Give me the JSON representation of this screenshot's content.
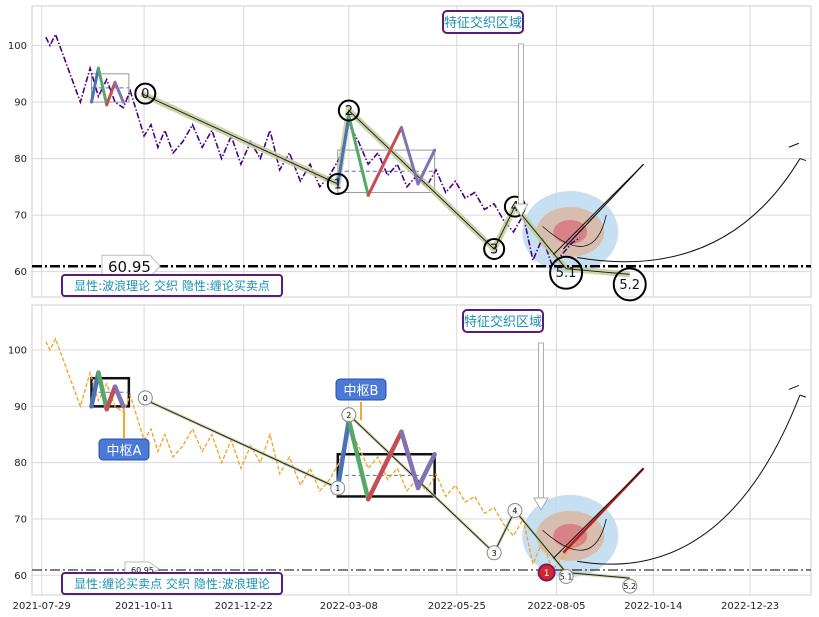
{
  "chart_data": [
    {
      "type": "line",
      "panel": "top",
      "title": "",
      "xlabel": "",
      "ylabel": "",
      "ylim": [
        55.5,
        107
      ],
      "yticks": [
        "60",
        "70",
        "80",
        "90",
        "100"
      ],
      "grid": true,
      "series": [
        {
          "line_style": "dash-dot",
          "color": "#4b0082",
          "x": [
            "2021-08-01",
            "2021-08-04",
            "2021-08-08",
            "2021-08-14",
            "2021-08-20",
            "2021-08-26",
            "2021-09-02",
            "2021-09-08",
            "2021-09-14",
            "2021-09-20",
            "2021-09-26",
            "2021-10-01",
            "2021-10-06",
            "2021-10-11",
            "2021-10-16",
            "2021-10-21",
            "2021-10-26",
            "2021-11-01",
            "2021-11-08",
            "2021-11-15",
            "2021-11-22",
            "2021-11-29",
            "2021-12-06",
            "2021-12-13",
            "2021-12-20",
            "2021-12-27",
            "2022-01-03",
            "2022-01-10",
            "2022-01-17",
            "2022-01-24",
            "2022-02-01",
            "2022-02-08",
            "2022-02-15",
            "2022-02-22",
            "2022-03-01",
            "2022-03-08",
            "2022-03-15",
            "2022-03-22",
            "2022-03-29",
            "2022-04-05",
            "2022-04-12",
            "2022-04-19",
            "2022-04-26",
            "2022-05-03",
            "2022-05-10",
            "2022-05-17",
            "2022-05-24",
            "2022-05-31",
            "2022-06-07",
            "2022-06-14",
            "2022-06-21",
            "2022-06-28",
            "2022-07-05",
            "2022-07-12",
            "2022-07-19",
            "2022-07-26",
            "2022-08-02",
            "2022-08-09",
            "2022-08-16",
            "2022-08-22"
          ],
          "y": [
            101.5,
            100,
            102,
            98,
            94,
            90,
            96,
            91,
            94,
            90,
            89,
            92,
            88,
            84,
            86,
            82,
            85,
            81,
            83,
            86,
            82,
            85,
            80,
            84,
            79,
            83,
            80,
            85,
            78,
            81,
            76,
            79,
            75,
            77,
            80,
            86,
            83,
            79,
            81,
            77,
            79,
            75,
            77,
            75,
            78,
            74,
            76,
            73,
            74,
            71,
            72,
            69,
            67,
            70,
            62,
            66,
            61,
            63,
            65,
            66
          ]
        }
      ],
      "bi_strokes": [
        {
          "x": [
            "2021-09-03",
            "2021-09-08"
          ],
          "y": [
            90,
            96
          ],
          "color": "#4a72b4"
        },
        {
          "x": [
            "2021-09-08",
            "2021-09-14"
          ],
          "y": [
            96,
            89.5
          ],
          "color": "#55a868"
        },
        {
          "x": [
            "2021-09-14",
            "2021-09-20"
          ],
          "y": [
            89.5,
            93.5
          ],
          "color": "#c44e52"
        },
        {
          "x": [
            "2021-09-20",
            "2021-09-26"
          ],
          "y": [
            93.5,
            90
          ],
          "color": "#8172b3"
        },
        {
          "x": [
            "2022-02-28",
            "2022-03-08"
          ],
          "y": [
            75.5,
            87.5
          ],
          "color": "#4a72b4"
        },
        {
          "x": [
            "2022-03-08",
            "2022-03-22"
          ],
          "y": [
            87.5,
            73.5
          ],
          "color": "#55a868"
        },
        {
          "x": [
            "2022-03-22",
            "2022-04-15"
          ],
          "y": [
            73.5,
            85.5
          ],
          "color": "#c44e52"
        },
        {
          "x": [
            "2022-04-15",
            "2022-04-27"
          ],
          "y": [
            85.5,
            75.5
          ],
          "color": "#8172b3"
        },
        {
          "x": [
            "2022-04-27",
            "2022-05-09"
          ],
          "y": [
            75.5,
            81.5
          ],
          "color": "#8172b3"
        }
      ],
      "wave_points": [
        {
          "label": "0",
          "x": "2021-10-09",
          "y": 91.5
        },
        {
          "label": "1",
          "x": "2022-02-28",
          "y": 75.5
        },
        {
          "label": "2",
          "x": "2022-03-08",
          "y": 88.5
        },
        {
          "label": "3",
          "x": "2022-06-21",
          "y": 64
        },
        {
          "label": "4",
          "x": "2022-07-06",
          "y": 71.5
        },
        {
          "label": "5.1",
          "x": "2022-08-12",
          "y": 60.5
        },
        {
          "label": "5.2",
          "x": "2022-09-27",
          "y": 59.5
        }
      ],
      "hline": {
        "y": 60.95,
        "label": "60.95"
      },
      "target_label": "特征交织区域",
      "legend_text": "显性:波浪理论 交织 隐性:缠论买卖点"
    },
    {
      "type": "line",
      "panel": "bottom",
      "title": "",
      "xlabel": "",
      "ylabel": "",
      "ylim": [
        56.5,
        108
      ],
      "yticks": [
        "60",
        "70",
        "80",
        "90",
        "100"
      ],
      "xticks": [
        "2021-07-29",
        "2021-10-11",
        "2021-12-22",
        "2022-03-08",
        "2022-05-25",
        "2022-08-05",
        "2022-10-14",
        "2022-12-23"
      ],
      "grid": true,
      "series": [
        {
          "line_style": "dashed",
          "color": "#f0a830",
          "x": [
            "2021-08-01",
            "2021-08-04",
            "2021-08-08",
            "2021-08-14",
            "2021-08-20",
            "2021-08-26",
            "2021-09-02",
            "2021-09-08",
            "2021-09-14",
            "2021-09-20",
            "2021-09-26",
            "2021-10-01",
            "2021-10-06",
            "2021-10-11",
            "2021-10-16",
            "2021-10-21",
            "2021-10-26",
            "2021-11-01",
            "2021-11-08",
            "2021-11-15",
            "2021-11-22",
            "2021-11-29",
            "2021-12-06",
            "2021-12-13",
            "2021-12-20",
            "2021-12-27",
            "2022-01-03",
            "2022-01-10",
            "2022-01-17",
            "2022-01-24",
            "2022-02-01",
            "2022-02-08",
            "2022-02-15",
            "2022-02-22",
            "2022-03-01",
            "2022-03-08",
            "2022-03-15",
            "2022-03-22",
            "2022-03-29",
            "2022-04-05",
            "2022-04-12",
            "2022-04-19",
            "2022-04-26",
            "2022-05-03",
            "2022-05-10",
            "2022-05-17",
            "2022-05-24",
            "2022-05-31",
            "2022-06-07",
            "2022-06-14",
            "2022-06-21",
            "2022-06-28",
            "2022-07-05",
            "2022-07-12",
            "2022-07-19",
            "2022-07-26",
            "2022-08-02",
            "2022-08-09",
            "2022-08-16",
            "2022-08-22"
          ],
          "y": [
            101.5,
            100,
            102,
            98,
            94,
            90,
            96,
            91,
            94,
            90,
            89,
            92,
            88,
            84,
            86,
            82,
            85,
            81,
            83,
            86,
            82,
            85,
            80,
            84,
            79,
            83,
            80,
            85,
            78,
            81,
            76,
            79,
            75,
            77,
            80,
            86,
            83,
            79,
            81,
            77,
            79,
            75,
            77,
            75,
            78,
            74,
            76,
            73,
            74,
            71,
            72,
            69,
            67,
            70,
            62,
            66,
            61,
            63,
            65,
            66
          ]
        }
      ],
      "bi_strokes": [
        {
          "x": [
            "2021-09-03",
            "2021-09-08"
          ],
          "y": [
            90,
            96
          ],
          "color": "#4a72b4"
        },
        {
          "x": [
            "2021-09-08",
            "2021-09-14"
          ],
          "y": [
            96,
            89.5
          ],
          "color": "#55a868"
        },
        {
          "x": [
            "2021-09-14",
            "2021-09-20"
          ],
          "y": [
            89.5,
            93.5
          ],
          "color": "#c44e52"
        },
        {
          "x": [
            "2021-09-20",
            "2021-09-26"
          ],
          "y": [
            93.5,
            90
          ],
          "color": "#8172b3"
        },
        {
          "x": [
            "2022-02-28",
            "2022-03-08"
          ],
          "y": [
            75.5,
            87.5
          ],
          "color": "#4a72b4"
        },
        {
          "x": [
            "2022-03-08",
            "2022-03-22"
          ],
          "y": [
            87.5,
            73.5
          ],
          "color": "#55a868"
        },
        {
          "x": [
            "2022-03-22",
            "2022-04-15"
          ],
          "y": [
            73.5,
            85.5
          ],
          "color": "#c44e52"
        },
        {
          "x": [
            "2022-04-15",
            "2022-04-27"
          ],
          "y": [
            85.5,
            75.5
          ],
          "color": "#8172b3"
        },
        {
          "x": [
            "2022-04-27",
            "2022-05-09"
          ],
          "y": [
            75.5,
            81.5
          ],
          "color": "#8172b3"
        }
      ],
      "wave_points": [
        {
          "label": "0",
          "x": "2021-10-09",
          "y": 91.5
        },
        {
          "label": "1",
          "x": "2022-02-28",
          "y": 75.5
        },
        {
          "label": "2",
          "x": "2022-03-08",
          "y": 88.5
        },
        {
          "label": "3",
          "x": "2022-06-21",
          "y": 64
        },
        {
          "label": "4",
          "x": "2022-07-06",
          "y": 71.5
        },
        {
          "label": "5.1",
          "x": "2022-08-12",
          "y": 60.5
        },
        {
          "label": "5.2",
          "x": "2022-09-27",
          "y": 59.5
        }
      ],
      "pivots": [
        {
          "label": "中枢A",
          "x_start": "2021-09-03",
          "x_end": "2021-09-30",
          "y_low": 90,
          "y_high": 95
        },
        {
          "label": "中枢B",
          "x_start": "2022-02-28",
          "x_end": "2022-05-09",
          "y_low": 74,
          "y_high": 81.5
        }
      ],
      "buy_point": {
        "label": "1",
        "x": "2022-07-26",
        "y": 60.5
      },
      "hline": {
        "y": 60.95,
        "label": "60.95"
      },
      "target_label": "特征交织区域",
      "legend_text": "显性:缠论买卖点 交织 隐性:波浪理论"
    }
  ]
}
